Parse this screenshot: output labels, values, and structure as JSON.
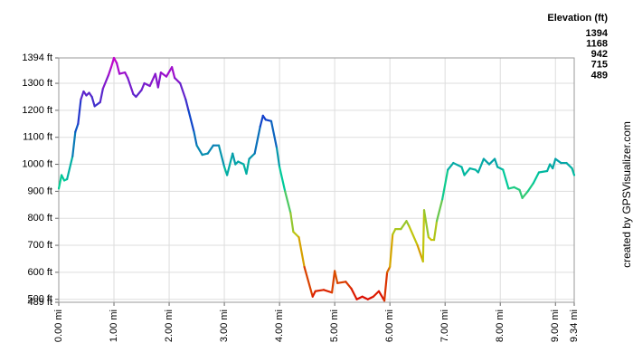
{
  "chart_data": {
    "type": "line",
    "y_unit_label": "Elevation (ft)",
    "credit": "created by GPSVisualizer.com",
    "x": [
      0.0,
      0.05,
      0.1,
      0.15,
      0.25,
      0.3,
      0.35,
      0.4,
      0.45,
      0.5,
      0.55,
      0.6,
      0.65,
      0.75,
      0.8,
      0.9,
      0.95,
      1.0,
      1.05,
      1.1,
      1.2,
      1.25,
      1.35,
      1.4,
      1.5,
      1.55,
      1.65,
      1.75,
      1.8,
      1.85,
      1.95,
      2.05,
      2.1,
      2.2,
      2.3,
      2.35,
      2.45,
      2.5,
      2.6,
      2.7,
      2.8,
      2.9,
      3.0,
      3.05,
      3.15,
      3.2,
      3.25,
      3.35,
      3.4,
      3.45,
      3.55,
      3.65,
      3.7,
      3.75,
      3.85,
      3.95,
      4.0,
      4.1,
      4.2,
      4.25,
      4.35,
      4.45,
      4.6,
      4.65,
      4.8,
      4.95,
      5.0,
      5.05,
      5.2,
      5.3,
      5.4,
      5.5,
      5.6,
      5.7,
      5.8,
      5.9,
      5.95,
      6.0,
      6.05,
      6.1,
      6.2,
      6.3,
      6.35,
      6.5,
      6.6,
      6.62,
      6.7,
      6.75,
      6.8,
      6.85,
      6.95,
      7.05,
      7.15,
      7.3,
      7.35,
      7.45,
      7.55,
      7.6,
      7.7,
      7.8,
      7.9,
      7.95,
      8.05,
      8.15,
      8.25,
      8.35,
      8.4,
      8.5,
      8.6,
      8.7,
      8.85,
      8.9,
      8.95,
      9.0,
      9.1,
      9.2,
      9.3,
      9.34
    ],
    "values": [
      910,
      960,
      940,
      945,
      1030,
      1120,
      1150,
      1240,
      1270,
      1255,
      1265,
      1250,
      1215,
      1230,
      1280,
      1330,
      1360,
      1394,
      1375,
      1335,
      1340,
      1320,
      1260,
      1250,
      1275,
      1300,
      1290,
      1335,
      1285,
      1340,
      1325,
      1360,
      1320,
      1300,
      1240,
      1200,
      1120,
      1070,
      1035,
      1040,
      1070,
      1070,
      990,
      960,
      1040,
      1000,
      1010,
      1000,
      965,
      1020,
      1040,
      1140,
      1180,
      1165,
      1160,
      1060,
      990,
      900,
      820,
      750,
      730,
      620,
      510,
      530,
      535,
      525,
      605,
      560,
      565,
      540,
      500,
      510,
      500,
      510,
      530,
      495,
      600,
      620,
      740,
      760,
      760,
      790,
      770,
      700,
      640,
      830,
      730,
      720,
      720,
      790,
      870,
      980,
      1005,
      990,
      960,
      985,
      980,
      970,
      1020,
      1000,
      1020,
      990,
      980,
      910,
      915,
      905,
      875,
      900,
      930,
      970,
      975,
      1000,
      985,
      1020,
      1005,
      1005,
      985,
      960
    ],
    "xlim": [
      0,
      9.34
    ],
    "ylim": [
      489,
      1394
    ],
    "xticks": [
      {
        "value": 0,
        "label": "0.00 mi"
      },
      {
        "value": 1,
        "label": "1.00 mi"
      },
      {
        "value": 2,
        "label": "2.00 mi"
      },
      {
        "value": 3,
        "label": "3.00 mi"
      },
      {
        "value": 4,
        "label": "4.00 mi"
      },
      {
        "value": 5,
        "label": "5.00 mi"
      },
      {
        "value": 6,
        "label": "6.00 mi"
      },
      {
        "value": 7,
        "label": "7.00 mi"
      },
      {
        "value": 8,
        "label": "8.00 mi"
      },
      {
        "value": 9,
        "label": "9.00 mi"
      },
      {
        "value": 9.34,
        "label": "9.34 mi"
      }
    ],
    "yticks": [
      {
        "value": 489,
        "label": "489 ft"
      },
      {
        "value": 500,
        "label": "500 ft"
      },
      {
        "value": 600,
        "label": "600 ft"
      },
      {
        "value": 700,
        "label": "700 ft"
      },
      {
        "value": 800,
        "label": "800 ft"
      },
      {
        "value": 900,
        "label": "900 ft"
      },
      {
        "value": 1000,
        "label": "1000 ft"
      },
      {
        "value": 1100,
        "label": "1100 ft"
      },
      {
        "value": 1200,
        "label": "1200 ft"
      },
      {
        "value": 1300,
        "label": "1300 ft"
      },
      {
        "value": 1394,
        "label": "1394 ft"
      }
    ],
    "grid": true,
    "color_scale": {
      "values": [
        1394,
        1168,
        942,
        715,
        489
      ],
      "colors": [
        "#cc00cc",
        "#1040cc",
        "#00cc99",
        "#d4c400",
        "#dd0000"
      ]
    }
  }
}
